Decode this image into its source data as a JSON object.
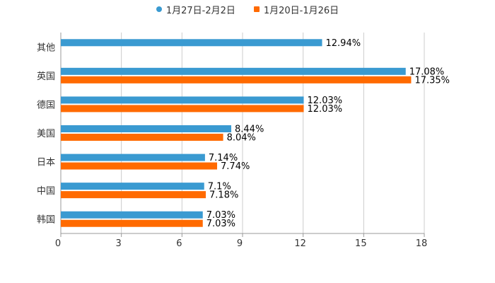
{
  "chart_data": {
    "type": "bar",
    "orientation": "horizontal",
    "categories": [
      "其他",
      "英国",
      "德国",
      "美国",
      "日本",
      "中国",
      "韩国"
    ],
    "series": [
      {
        "name": "1月27日-2月2日",
        "color": "#3a9ad1",
        "values": [
          12.94,
          17.08,
          12.03,
          8.44,
          7.14,
          7.1,
          7.03
        ],
        "labels": [
          "12.94%",
          "17.08%",
          "12.03%",
          "8.44%",
          "7.14%",
          "7.1%",
          "7.03%"
        ]
      },
      {
        "name": "1月20日-1月26日",
        "color": "#ff6a00",
        "values": [
          null,
          17.35,
          12.03,
          8.04,
          7.74,
          7.18,
          7.03
        ],
        "labels": [
          null,
          "17.35%",
          "12.03%",
          "8.04%",
          "7.74%",
          "7.18%",
          "7.03%"
        ]
      }
    ],
    "xlim": [
      0,
      18
    ],
    "xticks": [
      "0",
      "3",
      "6",
      "9",
      "12",
      "15",
      "18"
    ],
    "grid": true,
    "legend_position": "top-center"
  }
}
